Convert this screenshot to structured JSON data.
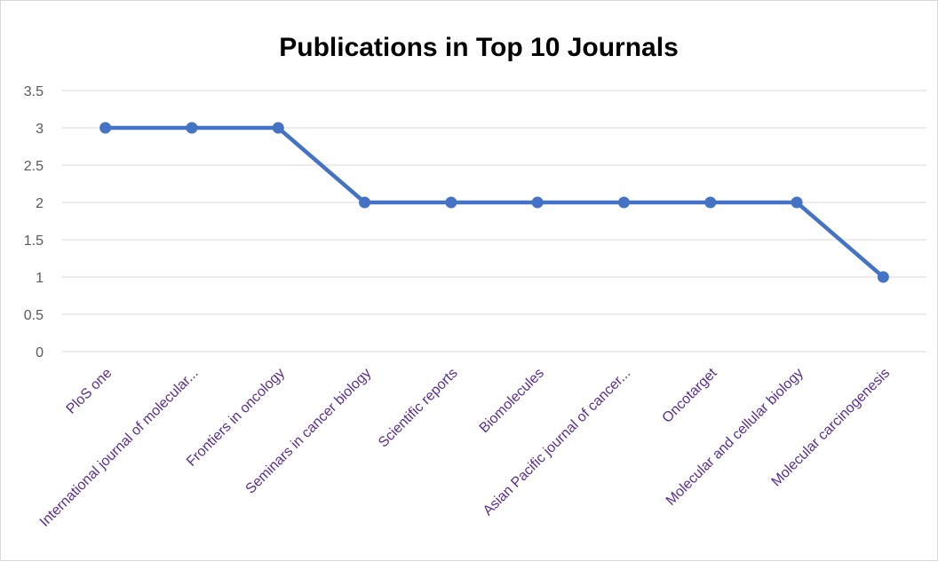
{
  "chart_data": {
    "type": "line",
    "title": "Publications in Top 10 Journals",
    "categories": [
      "PloS one",
      "International journal of molecular...",
      "Frontiers in oncology",
      "Seminars in cancer biology",
      "Scientific reports",
      "Biomolecules",
      "Asian Pacific journal of cancer...",
      "Oncotarget",
      "Molecular and cellular biology",
      "Molecular carcinogenesis"
    ],
    "series": [
      {
        "values": [
          3,
          3,
          3,
          2,
          2,
          2,
          2,
          2,
          2,
          1
        ]
      }
    ],
    "ylim": [
      0,
      3.5
    ],
    "yticks": [
      "0",
      "0.5",
      "1",
      "1.5",
      "2",
      "2.5",
      "3",
      "3.5"
    ],
    "grid": true,
    "legend": "none",
    "colors": {
      "line": "#4472c4",
      "category_label": "#5b2c8f",
      "tick_label": "#595959",
      "gridline": "#d9d9d9"
    }
  }
}
